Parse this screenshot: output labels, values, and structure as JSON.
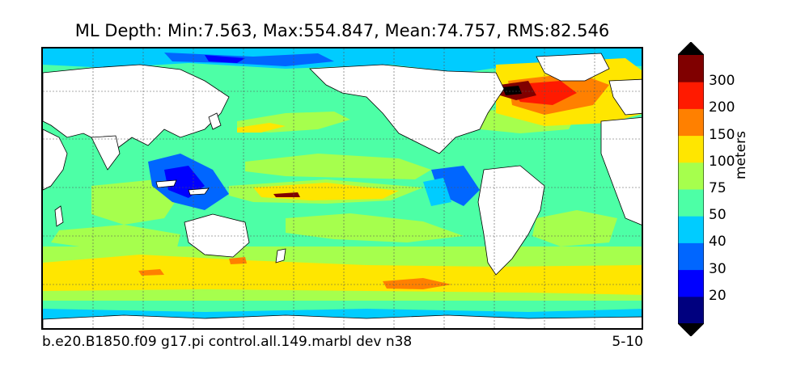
{
  "title": "ML Depth: Min:7.563, Max:554.847, Mean:74.757, RMS:82.546",
  "footer": {
    "case_name": "b.e20.B1850.f09 g17.pi control.all.149.marbl dev n38",
    "period": "5-10"
  },
  "colorbar": {
    "units": "meters",
    "levels": [
      "20",
      "30",
      "40",
      "50",
      "75",
      "100",
      "150",
      "200",
      "300"
    ],
    "colors": [
      "#00007f",
      "#0000ff",
      "#0066ff",
      "#00ccff",
      "#4dffa6",
      "#a6ff4d",
      "#ffe600",
      "#ff8000",
      "#ff1a00",
      "#800000"
    ],
    "under_color": "#000000",
    "over_color": "#000000"
  },
  "map": {
    "projection": "cylindrical",
    "land_color": "#ffffff",
    "ocean_base_color": "#4dffa6",
    "graticule": true
  }
}
